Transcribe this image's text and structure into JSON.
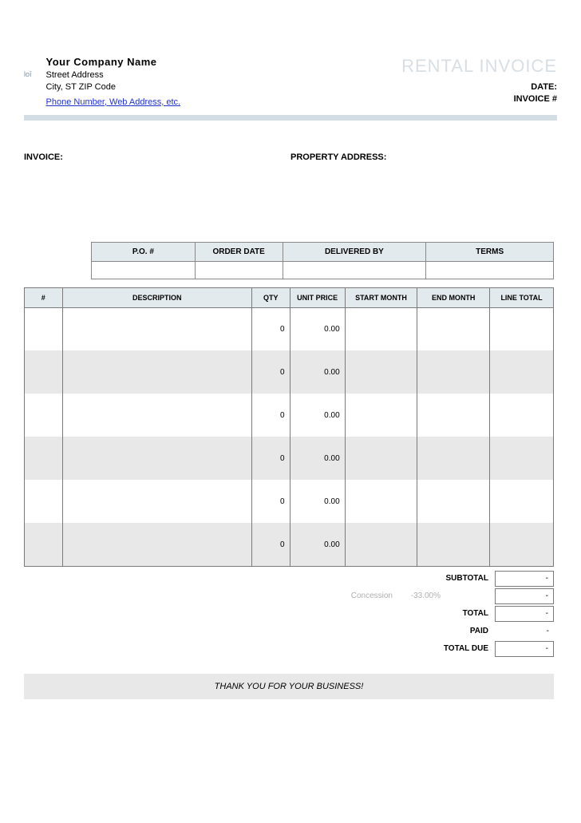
{
  "colors": {
    "header_bg": "#e3eaee",
    "alt_row_bg": "#e8e8e8",
    "border": "#7a7a7a",
    "title_faded": "#d8dfe4",
    "link": "#2233cc",
    "muted": "#b0b0b0",
    "divider": "#d3dde4"
  },
  "logo_text": "loī",
  "company": {
    "name": "Your Company Name",
    "street": "Street Address",
    "city_line": "City, ST  ZIP Code",
    "contact_link": "Phone Number, Web Address, etc."
  },
  "doc_title": "RENTAL INVOICE",
  "meta": {
    "date_label": "DATE:",
    "invoice_num_label": "INVOICE #"
  },
  "addr": {
    "invoice_label": "INVOICE:",
    "property_label": "PROPERTY ADDRESS:"
  },
  "order_headers": {
    "po": "P.O. #",
    "order_date": "ORDER DATE",
    "delivered_by": "DELIVERED BY",
    "terms": "TERMS"
  },
  "order_values": {
    "po": "",
    "order_date": "",
    "delivered_by": "",
    "terms": ""
  },
  "item_headers": {
    "num": "#",
    "desc": "DESCRIPTION",
    "qty": "QTY",
    "unit": "UNIT PRICE",
    "start": "START MONTH",
    "end": "END MONTH",
    "line": "LINE TOTAL"
  },
  "items": [
    {
      "num": "",
      "desc": "",
      "qty": "0",
      "unit": "0.00",
      "start": "",
      "end": "",
      "line": ""
    },
    {
      "num": "",
      "desc": "",
      "qty": "0",
      "unit": "0.00",
      "start": "",
      "end": "",
      "line": ""
    },
    {
      "num": "",
      "desc": "",
      "qty": "0",
      "unit": "0.00",
      "start": "",
      "end": "",
      "line": ""
    },
    {
      "num": "",
      "desc": "",
      "qty": "0",
      "unit": "0.00",
      "start": "",
      "end": "",
      "line": ""
    },
    {
      "num": "",
      "desc": "",
      "qty": "0",
      "unit": "0.00",
      "start": "",
      "end": "",
      "line": ""
    },
    {
      "num": "",
      "desc": "",
      "qty": "0",
      "unit": "0.00",
      "start": "",
      "end": "",
      "line": ""
    }
  ],
  "totals": {
    "subtotal_label": "SUBTOTAL",
    "subtotal_val": "-",
    "concession_label": "Concession",
    "concession_pct": "-33.00%",
    "concession_val": "-",
    "total_label": "TOTAL",
    "total_val": "-",
    "paid_label": "PAID",
    "paid_val": "-",
    "due_label": "TOTAL DUE",
    "due_val": "-"
  },
  "thanks": "THANK YOU FOR YOUR BUSINESS!"
}
